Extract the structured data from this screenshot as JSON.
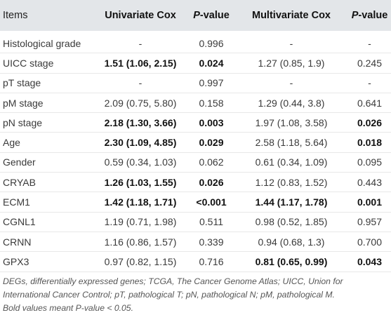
{
  "table": {
    "header": [
      "Items",
      "Univariate Cox",
      "P-value",
      "Multivariate Cox",
      "P-value"
    ],
    "rows": [
      {
        "cells": [
          "Histological grade",
          "-",
          "0.996",
          "-",
          "-"
        ],
        "bold": [
          false,
          false,
          false,
          false,
          false
        ]
      },
      {
        "cells": [
          "UICC stage",
          "1.51 (1.06, 2.15)",
          "0.024",
          "1.27 (0.85, 1.9)",
          "0.245"
        ],
        "bold": [
          false,
          true,
          true,
          false,
          false
        ]
      },
      {
        "cells": [
          "pT stage",
          "-",
          "0.997",
          "-",
          "-"
        ],
        "bold": [
          false,
          false,
          false,
          false,
          false
        ]
      },
      {
        "cells": [
          "pM stage",
          "2.09 (0.75, 5.80)",
          "0.158",
          "1.29 (0.44, 3.8)",
          "0.641"
        ],
        "bold": [
          false,
          false,
          false,
          false,
          false
        ]
      },
      {
        "cells": [
          "pN stage",
          "2.18 (1.30, 3.66)",
          "0.003",
          "1.97 (1.08, 3.58)",
          "0.026"
        ],
        "bold": [
          false,
          true,
          true,
          false,
          true
        ]
      },
      {
        "cells": [
          "Age",
          "2.30 (1.09, 4.85)",
          "0.029",
          "2.58 (1.18, 5.64)",
          "0.018"
        ],
        "bold": [
          false,
          true,
          true,
          false,
          true
        ]
      },
      {
        "cells": [
          "Gender",
          "0.59 (0.34, 1.03)",
          "0.062",
          "0.61 (0.34, 1.09)",
          "0.095"
        ],
        "bold": [
          false,
          false,
          false,
          false,
          false
        ]
      },
      {
        "cells": [
          "CRYAB",
          "1.26 (1.03, 1.55)",
          "0.026",
          "1.12 (0.83, 1.52)",
          "0.443"
        ],
        "bold": [
          false,
          true,
          true,
          false,
          false
        ]
      },
      {
        "cells": [
          "ECM1",
          "1.42 (1.18, 1.71)",
          "<0.001",
          "1.44 (1.17, 1.78)",
          "0.001"
        ],
        "bold": [
          false,
          true,
          true,
          true,
          true
        ]
      },
      {
        "cells": [
          "CGNL1",
          "1.19 (0.71, 1.98)",
          "0.511",
          "0.98 (0.52, 1.85)",
          "0.957"
        ],
        "bold": [
          false,
          false,
          false,
          false,
          false
        ]
      },
      {
        "cells": [
          "CRNN",
          "1.16 (0.86, 1.57)",
          "0.339",
          "0.94 (0.68, 1.3)",
          "0.700"
        ],
        "bold": [
          false,
          false,
          false,
          false,
          false
        ]
      },
      {
        "cells": [
          "GPX3",
          "0.97 (0.82, 1.15)",
          "0.716",
          "0.81 (0.65, 0.99)",
          "0.043"
        ],
        "bold": [
          false,
          false,
          false,
          true,
          true
        ]
      }
    ],
    "footnote": [
      "DEGs, differentially expressed genes; TCGA, The Cancer Genome Atlas; UICC, Union for",
      "International Cancer Control; pT, pathological T; pN, pathological N; pM, pathological M.",
      "Bold values meant P-value < 0.05."
    ]
  }
}
